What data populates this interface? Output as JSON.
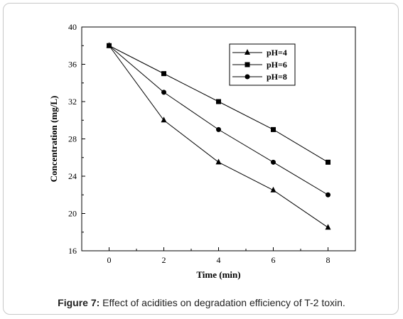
{
  "chart_data": {
    "type": "line",
    "xlabel": "Time (min)",
    "ylabel": "Concentration (mg/L)",
    "xlim": [
      -1,
      9
    ],
    "ylim": [
      16,
      40
    ],
    "x": [
      0,
      2,
      4,
      6,
      8
    ],
    "xticks": [
      0,
      2,
      4,
      6,
      8
    ],
    "yticks": [
      16,
      20,
      24,
      28,
      32,
      36,
      40
    ],
    "legend_position": "top-right",
    "grid": false,
    "series": [
      {
        "name": "pH=4",
        "marker": "triangle",
        "values": [
          38,
          30,
          25.5,
          22.5,
          18.5
        ]
      },
      {
        "name": "pH=6",
        "marker": "square",
        "values": [
          38,
          35,
          32,
          29,
          25.5
        ]
      },
      {
        "name": "pH=8",
        "marker": "circle",
        "values": [
          38,
          33,
          29,
          25.5,
          22
        ]
      }
    ]
  },
  "caption": {
    "label": "Figure 7:",
    "text": " Effect of acidities on degradation efficiency of T-2 toxin."
  }
}
